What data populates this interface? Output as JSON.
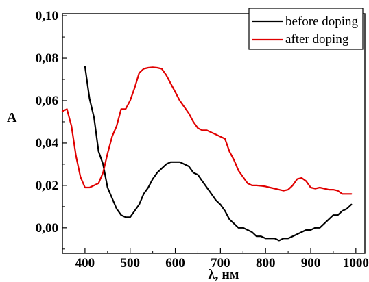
{
  "chart_data": {
    "type": "line",
    "xlabel": "λ, нм",
    "ylabel": "A",
    "xlim": [
      350,
      1020
    ],
    "ylim": [
      -0.012,
      0.101
    ],
    "x_ticks": [
      400,
      500,
      600,
      700,
      800,
      900,
      1000
    ],
    "x_tick_labels": [
      "400",
      "500",
      "600",
      "700",
      "800",
      "900",
      "1000"
    ],
    "y_ticks": [
      0.0,
      0.02,
      0.04,
      0.06,
      0.08,
      0.1
    ],
    "y_tick_labels": [
      "0,00",
      "0,02",
      "0,04",
      "0,06",
      "0,08",
      "0,10"
    ],
    "grid": false,
    "legend_position": "top-right",
    "series": [
      {
        "name": "before doping",
        "color": "#000000",
        "x": [
          400,
          410,
          420,
          430,
          440,
          450,
          460,
          470,
          480,
          490,
          500,
          510,
          520,
          530,
          540,
          550,
          560,
          570,
          580,
          590,
          600,
          610,
          620,
          630,
          640,
          650,
          660,
          670,
          680,
          690,
          700,
          710,
          720,
          730,
          740,
          750,
          760,
          770,
          780,
          790,
          800,
          810,
          820,
          830,
          840,
          850,
          860,
          870,
          880,
          890,
          900,
          910,
          920,
          930,
          940,
          950,
          960,
          970,
          980,
          990
        ],
        "values": [
          0.076,
          0.061,
          0.052,
          0.036,
          0.03,
          0.019,
          0.014,
          0.009,
          0.006,
          0.005,
          0.005,
          0.008,
          0.011,
          0.016,
          0.019,
          0.023,
          0.026,
          0.028,
          0.03,
          0.031,
          0.031,
          0.031,
          0.03,
          0.029,
          0.026,
          0.025,
          0.022,
          0.019,
          0.016,
          0.013,
          0.011,
          0.008,
          0.004,
          0.002,
          0.0,
          0.0,
          -0.001,
          -0.002,
          -0.004,
          -0.004,
          -0.005,
          -0.005,
          -0.005,
          -0.006,
          -0.005,
          -0.005,
          -0.004,
          -0.003,
          -0.002,
          -0.001,
          -0.001,
          0.0,
          0.0,
          0.002,
          0.004,
          0.006,
          0.006,
          0.008,
          0.009,
          0.011
        ]
      },
      {
        "name": "after doping",
        "color": "#e00000",
        "x": [
          350,
          360,
          370,
          380,
          390,
          400,
          410,
          420,
          430,
          440,
          450,
          460,
          470,
          480,
          490,
          500,
          510,
          520,
          530,
          540,
          550,
          560,
          570,
          580,
          590,
          600,
          610,
          620,
          630,
          640,
          650,
          660,
          670,
          680,
          690,
          700,
          710,
          720,
          730,
          740,
          750,
          760,
          770,
          780,
          790,
          800,
          810,
          820,
          830,
          840,
          850,
          860,
          870,
          880,
          890,
          900,
          910,
          920,
          930,
          940,
          950,
          960,
          970,
          980,
          990
        ],
        "values": [
          0.055,
          0.056,
          0.048,
          0.034,
          0.024,
          0.019,
          0.019,
          0.02,
          0.021,
          0.026,
          0.035,
          0.043,
          0.048,
          0.056,
          0.056,
          0.06,
          0.066,
          0.073,
          0.075,
          0.0755,
          0.0757,
          0.0755,
          0.075,
          0.072,
          0.068,
          0.064,
          0.06,
          0.057,
          0.054,
          0.05,
          0.047,
          0.046,
          0.046,
          0.045,
          0.044,
          0.043,
          0.042,
          0.036,
          0.032,
          0.027,
          0.024,
          0.021,
          0.02,
          0.02,
          0.0198,
          0.0195,
          0.019,
          0.0185,
          0.018,
          0.0175,
          0.018,
          0.02,
          0.023,
          0.0235,
          0.022,
          0.019,
          0.0185,
          0.019,
          0.0185,
          0.018,
          0.018,
          0.0175,
          0.016,
          0.016,
          0.016
        ]
      }
    ]
  }
}
